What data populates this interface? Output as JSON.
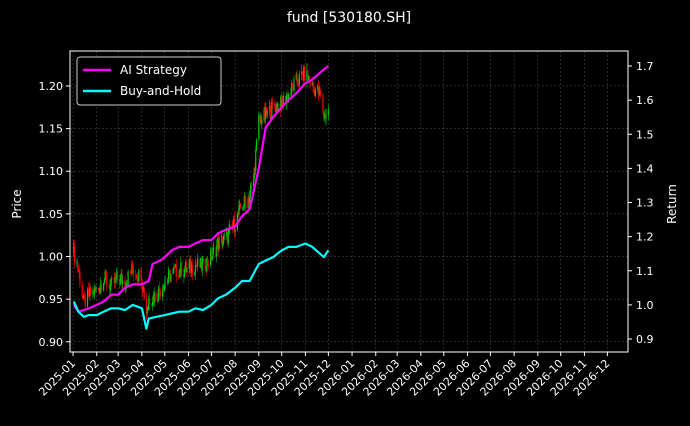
{
  "chart_data": {
    "type": "line",
    "title": "fund [530180.SH]",
    "ylabel_left": "Price",
    "ylabel_right": "Return",
    "y_left_ticks": [
      "0.90",
      "0.95",
      "1.00",
      "1.05",
      "1.10",
      "1.15",
      "1.20"
    ],
    "y_right_ticks": [
      "0.9",
      "1.0",
      "1.1",
      "1.2",
      "1.3",
      "1.4",
      "1.5",
      "1.6",
      "1.7"
    ],
    "x_tick_labels": [
      "2025-01",
      "2025-02",
      "2025-03",
      "2025-04",
      "2025-05",
      "2025-06",
      "2025-07",
      "2025-08",
      "2025-09",
      "2025-10",
      "2025-11",
      "2025-12",
      "2026-01",
      "2026-02",
      "2026-03",
      "2026-04",
      "2026-05",
      "2026-06",
      "2026-07",
      "2026-08",
      "2026-09",
      "2026-10",
      "2026-11",
      "2026-12"
    ],
    "ylim_left": [
      0.888,
      1.241
    ],
    "ylim_right": [
      0.862,
      1.744
    ],
    "grid": true,
    "legend_position": "top-left",
    "colors": {
      "ai": "#ff00ff",
      "bh": "#00ffff",
      "up": "#00cc00",
      "down": "#ff0000"
    },
    "price_series": {
      "name": "Price",
      "x": [
        "2025-01-02",
        "2025-01-08",
        "2025-01-15",
        "2025-01-22",
        "2025-02-01",
        "2025-02-10",
        "2025-02-20",
        "2025-03-01",
        "2025-03-10",
        "2025-03-20",
        "2025-04-01",
        "2025-04-07",
        "2025-04-10",
        "2025-04-20",
        "2025-05-01",
        "2025-05-10",
        "2025-05-20",
        "2025-06-01",
        "2025-06-10",
        "2025-06-20",
        "2025-07-01",
        "2025-07-10",
        "2025-07-20",
        "2025-08-01",
        "2025-08-10",
        "2025-08-20",
        "2025-08-25",
        "2025-09-01",
        "2025-09-10",
        "2025-09-20",
        "2025-10-01",
        "2025-10-10",
        "2025-10-20",
        "2025-11-01",
        "2025-11-10",
        "2025-11-20",
        "2025-11-25",
        "2025-12-01"
      ],
      "values": [
        1.005,
        0.985,
        0.945,
        0.955,
        0.96,
        0.975,
        0.965,
        0.975,
        0.97,
        0.985,
        0.975,
        0.935,
        0.95,
        0.955,
        0.97,
        0.98,
        0.985,
        0.985,
        0.99,
        0.988,
        1.0,
        1.015,
        1.02,
        1.04,
        1.06,
        1.07,
        1.09,
        1.16,
        1.165,
        1.175,
        1.18,
        1.19,
        1.205,
        1.215,
        1.2,
        1.19,
        1.165,
        1.17
      ]
    },
    "series": [
      {
        "name": "AI Strategy",
        "x": [
          "2025-01-02",
          "2025-01-08",
          "2025-01-15",
          "2025-01-22",
          "2025-02-01",
          "2025-02-10",
          "2025-02-20",
          "2025-03-01",
          "2025-03-10",
          "2025-03-20",
          "2025-04-01",
          "2025-04-10",
          "2025-04-15",
          "2025-04-25",
          "2025-05-01",
          "2025-05-10",
          "2025-05-20",
          "2025-06-01",
          "2025-06-10",
          "2025-06-20",
          "2025-07-01",
          "2025-07-10",
          "2025-07-20",
          "2025-08-01",
          "2025-08-10",
          "2025-08-20",
          "2025-09-01",
          "2025-09-10",
          "2025-09-20",
          "2025-10-01",
          "2025-10-10",
          "2025-10-20",
          "2025-11-01",
          "2025-11-10",
          "2025-11-20",
          "2025-11-25",
          "2025-12-01"
        ],
        "values": [
          1.0,
          0.98,
          0.985,
          0.99,
          1.0,
          1.01,
          1.03,
          1.03,
          1.05,
          1.06,
          1.06,
          1.07,
          1.12,
          1.13,
          1.14,
          1.16,
          1.17,
          1.17,
          1.18,
          1.19,
          1.19,
          1.21,
          1.22,
          1.23,
          1.26,
          1.28,
          1.4,
          1.52,
          1.55,
          1.58,
          1.6,
          1.62,
          1.65,
          1.66,
          1.68,
          1.69,
          1.7
        ]
      },
      {
        "name": "Buy-and-Hold",
        "x": [
          "2025-01-02",
          "2025-01-08",
          "2025-01-15",
          "2025-01-22",
          "2025-02-01",
          "2025-02-10",
          "2025-02-20",
          "2025-03-01",
          "2025-03-10",
          "2025-03-20",
          "2025-04-01",
          "2025-04-07",
          "2025-04-10",
          "2025-04-20",
          "2025-05-01",
          "2025-05-10",
          "2025-05-20",
          "2025-06-01",
          "2025-06-10",
          "2025-06-20",
          "2025-07-01",
          "2025-07-10",
          "2025-07-20",
          "2025-08-01",
          "2025-08-10",
          "2025-08-20",
          "2025-09-01",
          "2025-09-10",
          "2025-09-20",
          "2025-10-01",
          "2025-10-10",
          "2025-10-20",
          "2025-11-01",
          "2025-11-10",
          "2025-11-20",
          "2025-11-25",
          "2025-12-01"
        ],
        "values": [
          1.01,
          0.98,
          0.965,
          0.97,
          0.97,
          0.98,
          0.99,
          0.99,
          0.985,
          1.0,
          0.99,
          0.93,
          0.96,
          0.965,
          0.97,
          0.975,
          0.98,
          0.98,
          0.99,
          0.985,
          1.0,
          1.02,
          1.03,
          1.05,
          1.07,
          1.07,
          1.12,
          1.13,
          1.14,
          1.16,
          1.17,
          1.17,
          1.18,
          1.17,
          1.15,
          1.14,
          1.16
        ]
      }
    ]
  }
}
